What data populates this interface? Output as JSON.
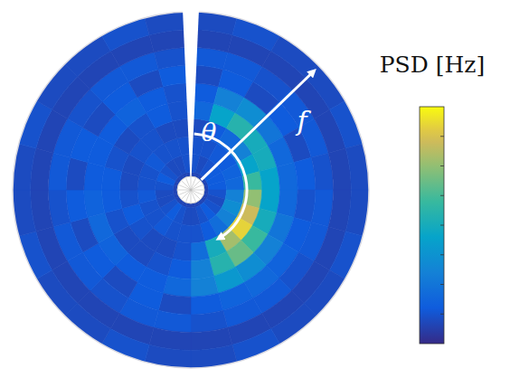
{
  "chart_data": {
    "type": "polar_heatmap",
    "theta": [
      7.5,
      22.5,
      37.5,
      52.5,
      67.5,
      82.5,
      97.5,
      112.5,
      127.5,
      142.5,
      157.5,
      172.5,
      187.5,
      202.5,
      217.5,
      232.5,
      247.5,
      262.5,
      277.5,
      292.5,
      307.5,
      322.5,
      337.5,
      352.5
    ],
    "f": [
      0.05,
      0.15,
      0.25,
      0.35,
      0.45,
      0.55,
      0.65,
      0.75,
      0.85,
      0.95
    ],
    "thetalim": [
      0,
      360
    ],
    "flim": [
      0,
      1
    ],
    "cells": [
      [
        0.08,
        0.08,
        0.08,
        0.08,
        0.08,
        0.08,
        0.08,
        0.08,
        0.08,
        0.08,
        0.08,
        0.08,
        0.08,
        0.08,
        0.08,
        0.08,
        0.08,
        0.08,
        0.08,
        0.08,
        0.08,
        0.08,
        0.08,
        0.08
      ],
      [
        0.12,
        0.1,
        0.12,
        0.15,
        0.15,
        0.15,
        0.12,
        0.1,
        0.12,
        0.15,
        0.12,
        0.1,
        0.1,
        0.12,
        0.15,
        0.12,
        0.1,
        0.1,
        0.12,
        0.15,
        0.12,
        0.1,
        0.1,
        0.12
      ],
      [
        0.12,
        0.12,
        0.14,
        0.15,
        0.18,
        0.2,
        0.3,
        0.35,
        0.3,
        0.22,
        0.15,
        0.12,
        0.12,
        0.12,
        0.14,
        0.12,
        0.12,
        0.14,
        0.12,
        0.12,
        0.14,
        0.12,
        0.12,
        0.12
      ],
      [
        0.1,
        0.15,
        0.2,
        0.3,
        0.45,
        0.6,
        0.75,
        0.85,
        0.92,
        0.78,
        0.5,
        0.22,
        0.12,
        0.1,
        0.1,
        0.12,
        0.15,
        0.12,
        0.1,
        0.1,
        0.12,
        0.12,
        0.1,
        0.1
      ],
      [
        0.2,
        0.45,
        0.55,
        0.5,
        0.5,
        0.45,
        0.45,
        0.5,
        0.6,
        0.68,
        0.55,
        0.3,
        0.15,
        0.12,
        0.1,
        0.1,
        0.12,
        0.15,
        0.15,
        0.12,
        0.1,
        0.12,
        0.15,
        0.12
      ],
      [
        0.15,
        0.3,
        0.35,
        0.25,
        0.2,
        0.2,
        0.2,
        0.25,
        0.3,
        0.35,
        0.4,
        0.3,
        0.2,
        0.15,
        0.15,
        0.18,
        0.2,
        0.18,
        0.15,
        0.15,
        0.15,
        0.18,
        0.15,
        0.12
      ],
      [
        0.1,
        0.15,
        0.1,
        0.15,
        0.1,
        0.15,
        0.12,
        0.15,
        0.18,
        0.2,
        0.18,
        0.15,
        0.1,
        0.15,
        0.1,
        0.15,
        0.1,
        0.15,
        0.1,
        0.15,
        0.1,
        0.15,
        0.1,
        0.15
      ],
      [
        0.14,
        0.14,
        0.12,
        0.14,
        0.14,
        0.12,
        0.14,
        0.14,
        0.12,
        0.14,
        0.14,
        0.12,
        0.14,
        0.14,
        0.12,
        0.14,
        0.14,
        0.12,
        0.14,
        0.14,
        0.12,
        0.14,
        0.14,
        0.12
      ],
      [
        0.08,
        0.08,
        0.08,
        0.08,
        0.08,
        0.08,
        0.08,
        0.08,
        0.08,
        0.08,
        0.08,
        0.08,
        0.08,
        0.08,
        0.08,
        0.08,
        0.08,
        0.08,
        0.08,
        0.08,
        0.08,
        0.08,
        0.08,
        0.08
      ],
      [
        0.1,
        0.12,
        0.1,
        0.1,
        0.12,
        0.1,
        0.1,
        0.12,
        0.1,
        0.1,
        0.12,
        0.1,
        0.1,
        0.12,
        0.1,
        0.1,
        0.12,
        0.1,
        0.1,
        0.12,
        0.1,
        0.1,
        0.12,
        0.1
      ]
    ],
    "clim": [
      0,
      1
    ],
    "tick_labels": false,
    "colorbar_label": "PSD [Hz]",
    "theta_label": "θ",
    "f_label": "f"
  }
}
